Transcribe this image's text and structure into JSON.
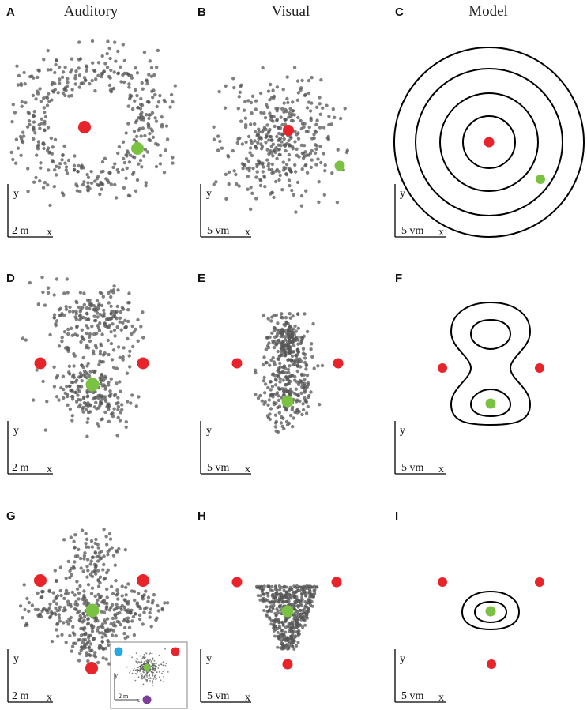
{
  "columns": [
    "Auditory",
    "Visual",
    "Model"
  ],
  "panels": {
    "A": {
      "letter": "A",
      "scale": "2 m",
      "y": "y",
      "x": "x"
    },
    "B": {
      "letter": "B",
      "scale": "5 vm",
      "y": "y",
      "x": "x"
    },
    "C": {
      "letter": "C",
      "scale": "5 vm",
      "y": "y",
      "x": "x"
    },
    "D": {
      "letter": "D",
      "scale": "2 m",
      "y": "y",
      "x": "x"
    },
    "E": {
      "letter": "E",
      "scale": "5 vm",
      "y": "y",
      "x": "x"
    },
    "F": {
      "letter": "F",
      "scale": "5 vm",
      "y": "y",
      "x": "x"
    },
    "G": {
      "letter": "G",
      "scale": "2 m",
      "y": "y",
      "x": "x"
    },
    "H": {
      "letter": "H",
      "scale": "5 vm",
      "y": "y",
      "x": "x"
    },
    "I": {
      "letter": "I",
      "scale": "5 vm",
      "y": "y",
      "x": "x"
    }
  },
  "inset": {
    "scale": "2 m",
    "y": "y",
    "x": "x"
  },
  "colors": {
    "landmark": "#e8232a",
    "target": "#7cc242",
    "point": "#555555",
    "contour": "#000000",
    "inset_left": "#23aae1",
    "inset_bottom": "#7d3f98",
    "inset_border": "#9a9a9a"
  }
}
